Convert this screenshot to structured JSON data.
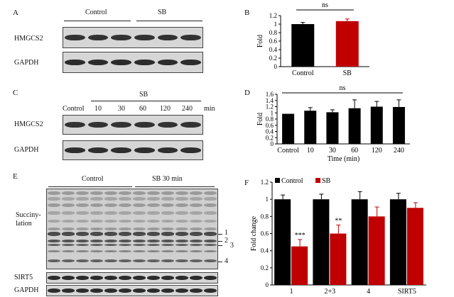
{
  "panels": {
    "A": {
      "letter": "A",
      "group_labels": [
        "Control",
        "SB"
      ],
      "row_labels": [
        "HMGCS2",
        "GAPDH"
      ]
    },
    "B": {
      "letter": "B"
    },
    "C": {
      "letter": "C",
      "sb_label": "SB",
      "control_label": "Control",
      "times": [
        "10",
        "30",
        "60",
        "120",
        "240"
      ],
      "unit": "min",
      "row_labels": [
        "HMGCS2",
        "GAPDH"
      ]
    },
    "D": {
      "letter": "D"
    },
    "E": {
      "letter": "E",
      "group_labels": [
        "Control",
        "SB 30 min"
      ],
      "succ_label_1": "Succiny-",
      "succ_label_2": "lation",
      "band_markers": [
        "1",
        "2",
        "3",
        "4"
      ],
      "row_labels": [
        "SIRT5",
        "GAPDH"
      ]
    },
    "F": {
      "letter": "F"
    }
  },
  "chart_data": [
    {
      "id": "B",
      "type": "bar",
      "categories": [
        "Control",
        "SB"
      ],
      "values": [
        1.0,
        1.07
      ],
      "errors": [
        0.04,
        0.05
      ],
      "colors": [
        "#000000",
        "#c00000"
      ],
      "ylabel": "Fold",
      "ylim": [
        0,
        1.2
      ],
      "yticks": [
        "0",
        "0.2",
        "0.4",
        "0.6",
        "0.8",
        "1",
        "1.2"
      ],
      "annotation": "ns"
    },
    {
      "id": "D",
      "type": "bar",
      "categories": [
        "Control",
        "10",
        "30",
        "60",
        "120",
        "240"
      ],
      "values": [
        0.97,
        1.07,
        1.02,
        1.15,
        1.2,
        1.19
      ],
      "errors": [
        0.0,
        0.1,
        0.08,
        0.27,
        0.17,
        0.23
      ],
      "colors": [
        "#000000",
        "#000000",
        "#000000",
        "#000000",
        "#000000",
        "#000000"
      ],
      "xlabel": "Time (min)",
      "ylabel": "Fold",
      "ylim": [
        0,
        1.6
      ],
      "yticks": [
        "0",
        "0.2",
        "0.4",
        "0.6",
        "0.8",
        "1",
        "1.2",
        "1.4",
        "1.6"
      ],
      "annotation": "ns"
    },
    {
      "id": "F",
      "type": "bar",
      "categories": [
        "1",
        "2+3",
        "4",
        "SIRT5"
      ],
      "series": [
        {
          "name": "Control",
          "values": [
            1.0,
            1.0,
            1.0,
            1.0
          ],
          "errors": [
            0.05,
            0.06,
            0.09,
            0.07
          ],
          "color": "#000000"
        },
        {
          "name": "SB",
          "values": [
            0.45,
            0.6,
            0.8,
            0.9
          ],
          "errors": [
            0.08,
            0.1,
            0.11,
            0.06
          ],
          "color": "#c00000"
        }
      ],
      "significance": [
        "***",
        "**",
        "",
        ""
      ],
      "ylabel": "Fold change",
      "ylim": [
        0,
        1.2
      ],
      "yticks": [
        "0",
        "0.2",
        "0.4",
        "0.6",
        "0.8",
        "1",
        "1.2"
      ],
      "legend": "top-left"
    }
  ]
}
